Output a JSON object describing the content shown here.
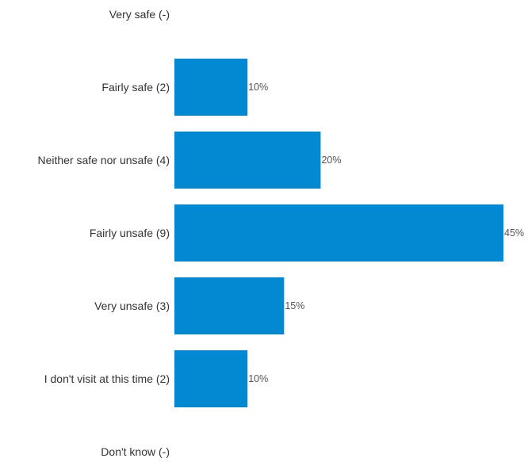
{
  "chart_data": {
    "type": "bar",
    "orientation": "horizontal",
    "categories": [
      "Very safe (-)",
      "Fairly safe (2)",
      "Neither safe nor unsafe (4)",
      "Fairly unsafe (9)",
      "Very unsafe (3)",
      "I don't visit at this time (2)",
      "Don't know (-)"
    ],
    "values": [
      0,
      10,
      20,
      45,
      15,
      10,
      0
    ],
    "value_labels": [
      "",
      "10%",
      "20%",
      "45%",
      "15%",
      "10%",
      ""
    ],
    "xlim": [
      0,
      45
    ],
    "grid": false,
    "legend": "none",
    "bar_color": "#0388d2"
  }
}
